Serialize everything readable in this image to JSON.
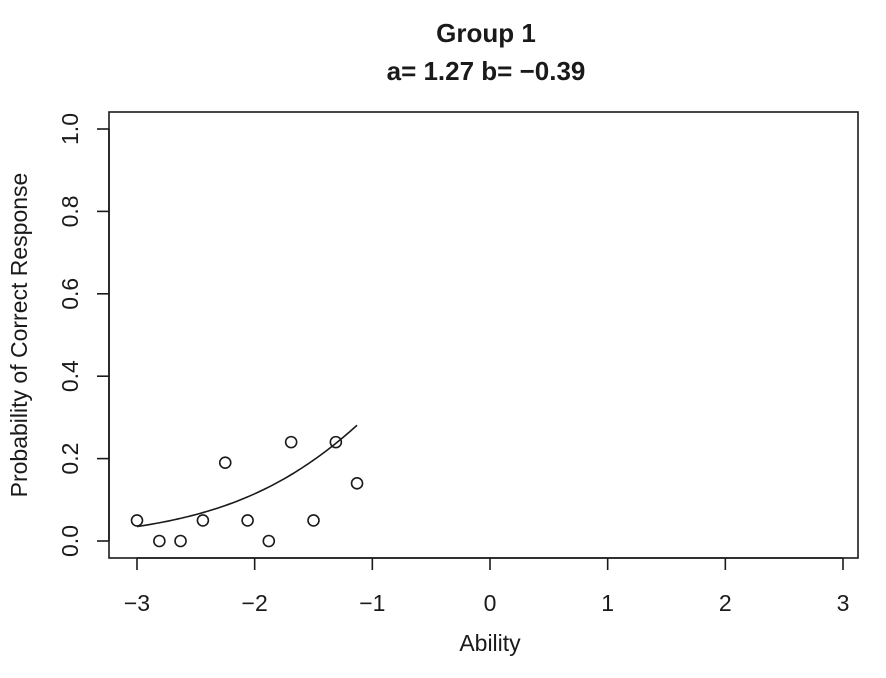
{
  "chart_data": {
    "type": "scatter",
    "title": "Group 1",
    "subtitle": "a= 1.27 b= −0.39",
    "xlabel": "Ability",
    "ylabel": "Probability of Correct Response",
    "xlim": [
      -3,
      3
    ],
    "ylim": [
      0,
      1
    ],
    "xticks": [
      -3,
      -2,
      -1,
      0,
      1,
      2,
      3
    ],
    "xtick_labels": [
      "−3",
      "−2",
      "−1",
      "0",
      "1",
      "2",
      "3"
    ],
    "yticks": [
      0,
      0.2,
      0.4,
      0.6,
      0.8,
      1.0
    ],
    "ytick_labels": [
      "0.0",
      "0.2",
      "0.4",
      "0.6",
      "0.8",
      "1.0"
    ],
    "grid": false,
    "points": {
      "x": [
        -3.0,
        -2.81,
        -2.63,
        -2.44,
        -2.25,
        -2.06,
        -1.88,
        -1.69,
        -1.5,
        -1.31,
        -1.13
      ],
      "y": [
        0.05,
        0.0,
        0.0,
        0.05,
        0.19,
        0.05,
        0.0,
        0.24,
        0.05,
        0.24,
        0.14
      ]
    },
    "curve": {
      "model": "2PL logistic",
      "a": 1.27,
      "b": -0.39,
      "x_range": [
        -3.0,
        -1.13
      ]
    }
  }
}
